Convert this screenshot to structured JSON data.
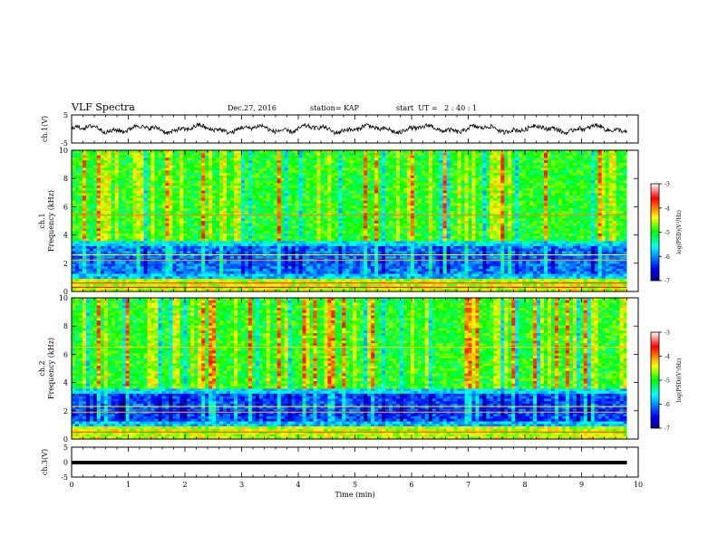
{
  "header": {
    "title": "VLF Spectra",
    "date": "Dec.27, 2016",
    "station": "station= KAP",
    "start": "start  UT =   2 : 40 : 1"
  },
  "chart_data": [
    {
      "type": "line",
      "name": "ch1-waveform",
      "ylabel": "ch.1(V)",
      "ylim": [
        -5,
        5
      ],
      "yticks": [
        "5",
        "-5"
      ],
      "xlim": [
        0,
        10
      ],
      "description_values": "noisy waveform oscillating roughly between -1.5 and 1.5 V"
    },
    {
      "type": "heatmap",
      "name": "ch1-spectrogram",
      "ylabel": "ch.1\nFrequency (kHz)",
      "ylim": [
        0,
        10
      ],
      "yticks": [
        "0",
        "2",
        "4",
        "6",
        "8",
        "10"
      ],
      "xlim": [
        0,
        10
      ],
      "data_end_min": 9.8,
      "colorbar": {
        "label": "log(PSD)(V²/Hz)",
        "range": [
          -7,
          -3
        ],
        "ticks": [
          "-3",
          "-4",
          "-5",
          "-6",
          "-7"
        ]
      }
    },
    {
      "type": "heatmap",
      "name": "ch2-spectrogram",
      "ylabel": "ch.2\nFrequency (kHz)",
      "ylim": [
        0,
        10
      ],
      "yticks": [
        "0",
        "2",
        "4",
        "6",
        "8",
        "10"
      ],
      "xlim": [
        0,
        10
      ],
      "data_end_min": 9.8,
      "colorbar": {
        "label": "log(PSD)(V²/Hz)",
        "range": [
          -7,
          -3
        ],
        "ticks": [
          "-3",
          "-4",
          "-5",
          "-6",
          "-7"
        ]
      }
    },
    {
      "type": "line",
      "name": "ch3-waveform",
      "ylabel": "ch.3(V)",
      "ylim": [
        -5,
        5
      ],
      "yticks": [
        "5",
        "0",
        "-5"
      ],
      "xlim": [
        0,
        10
      ],
      "constant_value": 0,
      "xlabel": "Time (min)",
      "xticks": [
        "0",
        "1",
        "2",
        "3",
        "4",
        "5",
        "6",
        "7",
        "8",
        "9",
        "10"
      ]
    }
  ]
}
